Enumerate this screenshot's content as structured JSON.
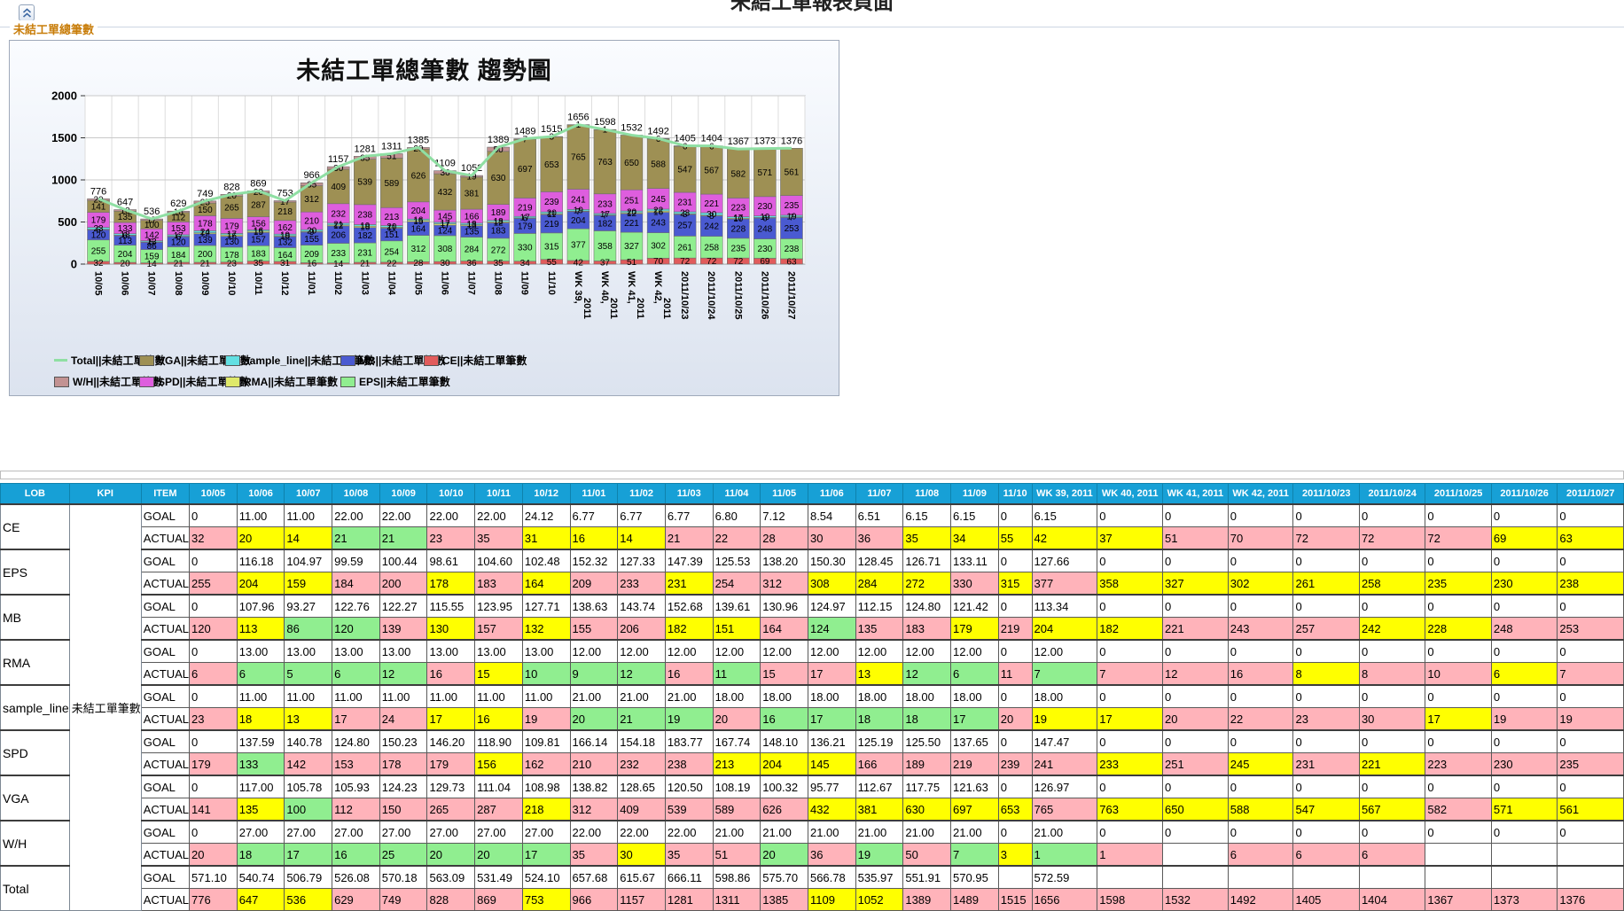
{
  "page": {
    "top_title": "未結工單報表頁面",
    "section_tab": "未結工單總筆數",
    "collapse_icon": "double-chevron-up"
  },
  "chart_data": {
    "type": "bar",
    "stacked": true,
    "title": "未結工單總筆數 趨勢圖",
    "xlabel": "",
    "ylabel": "",
    "ylim": [
      0,
      2000
    ],
    "y_ticks": [
      0,
      500,
      1000,
      1500,
      2000
    ],
    "grid": true,
    "legend_position": "bottom",
    "categories": [
      "10/05",
      "10/06",
      "10/07",
      "10/08",
      "10/09",
      "10/10",
      "10/11",
      "10/12",
      "11/01",
      "11/02",
      "11/03",
      "11/04",
      "11/05",
      "11/06",
      "11/07",
      "11/08",
      "11/09",
      "11/10",
      "WK 39, 2011",
      "WK 40, 2011",
      "WK 41, 2011",
      "WK 42, 2011",
      "2011/10/23",
      "2011/10/24",
      "2011/10/25",
      "2011/10/26",
      "2011/10/27"
    ],
    "series": [
      {
        "name": "CE||未結工單筆數",
        "color": "#e15b5b",
        "values": [
          32,
          20,
          14,
          21,
          21,
          23,
          35,
          31,
          16,
          14,
          21,
          22,
          28,
          30,
          36,
          35,
          34,
          55,
          42,
          37,
          51,
          70,
          72,
          72,
          72,
          69,
          63
        ]
      },
      {
        "name": "EPS||未結工單筆數",
        "color": "#90ee90",
        "values": [
          255,
          204,
          159,
          184,
          200,
          178,
          183,
          164,
          209,
          233,
          231,
          254,
          312,
          308,
          284,
          272,
          330,
          315,
          377,
          358,
          327,
          302,
          261,
          258,
          235,
          230,
          238
        ]
      },
      {
        "name": "MB||未結工單筆數",
        "color": "#4a5ad1",
        "values": [
          120,
          113,
          86,
          120,
          139,
          130,
          157,
          132,
          155,
          206,
          182,
          151,
          164,
          124,
          135,
          183,
          179,
          219,
          204,
          182,
          221,
          243,
          257,
          242,
          228,
          248,
          253
        ]
      },
      {
        "name": "RMA||未結工單筆數",
        "color": "#dfe96a",
        "values": [
          6,
          6,
          5,
          6,
          12,
          16,
          15,
          10,
          9,
          12,
          16,
          11,
          15,
          17,
          13,
          12,
          6,
          11,
          7,
          7,
          12,
          16,
          8,
          8,
          10,
          6,
          7
        ]
      },
      {
        "name": "sample_line||未結工單筆數",
        "color": "#62dfe2",
        "values": [
          23,
          18,
          13,
          17,
          24,
          17,
          16,
          19,
          20,
          21,
          19,
          20,
          16,
          17,
          18,
          18,
          17,
          20,
          19,
          17,
          20,
          22,
          23,
          30,
          17,
          19,
          19
        ]
      },
      {
        "name": "SPD||未結工單筆數",
        "color": "#de5ede",
        "values": [
          179,
          133,
          142,
          153,
          178,
          179,
          156,
          162,
          210,
          232,
          238,
          213,
          204,
          145,
          166,
          189,
          219,
          239,
          241,
          233,
          251,
          245,
          231,
          221,
          223,
          230,
          235
        ]
      },
      {
        "name": "VGA||未結工單筆數",
        "color": "#9e9054",
        "values": [
          141,
          135,
          100,
          112,
          150,
          265,
          287,
          218,
          312,
          409,
          539,
          589,
          626,
          432,
          381,
          630,
          697,
          653,
          765,
          763,
          650,
          588,
          547,
          567,
          582,
          571,
          561
        ]
      },
      {
        "name": "W/H||未結工單筆數",
        "color": "#c29292",
        "values": [
          20,
          18,
          17,
          16,
          25,
          20,
          20,
          17,
          35,
          30,
          35,
          51,
          20,
          36,
          19,
          50,
          7,
          3,
          1,
          1,
          0,
          6,
          6,
          6,
          0,
          0,
          0
        ]
      }
    ],
    "line_series": {
      "name": "Total||未結工單筆數",
      "color": "#8fdfa3",
      "values": [
        776,
        647,
        536,
        629,
        749,
        828,
        869,
        753,
        966,
        1157,
        1281,
        1311,
        1385,
        1109,
        1052,
        1389,
        1489,
        1515,
        1656,
        1598,
        1532,
        1492,
        1405,
        1404,
        1367,
        1373,
        1376
      ]
    },
    "legend_rows": [
      [
        "Total||未結工單筆數",
        "VGA||未結工單筆數",
        "sample_line||未結工單筆數",
        "MB||未結工單筆數",
        "CE||未結工單筆數"
      ],
      [
        "W/H||未結工單筆數",
        "SPD||未結工單筆數",
        "RMA||未結工單筆數",
        "EPS||未結工單筆數"
      ]
    ]
  },
  "table": {
    "fixed_headers": [
      "LOB",
      "KPI",
      "ITEM"
    ],
    "kpi_label": "未結工單筆數",
    "item_labels": {
      "goal": "GOAL",
      "actual": "ACTUAL"
    },
    "cell_colors": {
      "P": "#ffb3ba",
      "Y": "#ffff00",
      "G": "#90ee90",
      "W": "#ffffff"
    },
    "header_bg": "#17a0d6",
    "groups": [
      {
        "lob": "CE",
        "goal": [
          "0",
          "11.00",
          "11.00",
          "22.00",
          "22.00",
          "22.00",
          "22.00",
          "24.12",
          "6.77",
          "6.77",
          "6.77",
          "6.80",
          "7.12",
          "8.54",
          "6.51",
          "6.15",
          "6.15",
          "0",
          "6.15",
          "0",
          "0",
          "0",
          "0",
          "0",
          "0",
          "0",
          "0"
        ],
        "actual": [
          32,
          20,
          14,
          21,
          21,
          23,
          35,
          31,
          16,
          14,
          21,
          22,
          28,
          30,
          36,
          35,
          34,
          55,
          42,
          37,
          51,
          70,
          72,
          72,
          72,
          69,
          63
        ],
        "colors": "PYYGGPPYYYPPPPPYYYYYPPPPPYY"
      },
      {
        "lob": "EPS",
        "goal": [
          "0",
          "116.18",
          "104.97",
          "99.59",
          "100.44",
          "98.61",
          "104.60",
          "102.48",
          "152.32",
          "127.33",
          "147.39",
          "125.53",
          "138.20",
          "150.30",
          "128.45",
          "126.71",
          "133.11",
          "0",
          "127.66",
          "0",
          "0",
          "0",
          "0",
          "0",
          "0",
          "0",
          "0"
        ],
        "actual": [
          255,
          204,
          159,
          184,
          200,
          178,
          183,
          164,
          209,
          233,
          231,
          254,
          312,
          308,
          284,
          272,
          330,
          315,
          377,
          358,
          327,
          302,
          261,
          258,
          235,
          230,
          238
        ],
        "colors": "PYYPPYPYPPYPPYYYPYPYYYYYYYY"
      },
      {
        "lob": "MB",
        "goal": [
          "0",
          "107.96",
          "93.27",
          "122.76",
          "122.27",
          "115.55",
          "123.95",
          "127.71",
          "138.63",
          "143.74",
          "152.68",
          "139.61",
          "130.96",
          "124.97",
          "112.15",
          "124.80",
          "121.42",
          "0",
          "113.34",
          "0",
          "0",
          "0",
          "0",
          "0",
          "0",
          "0",
          "0"
        ],
        "actual": [
          120,
          113,
          86,
          120,
          139,
          130,
          157,
          132,
          155,
          206,
          182,
          151,
          164,
          124,
          135,
          183,
          179,
          219,
          204,
          182,
          221,
          243,
          257,
          242,
          228,
          248,
          253
        ],
        "colors": "PYGGPYPYPPYYPGPPYPYYPPPYYPP"
      },
      {
        "lob": "RMA",
        "goal": [
          "0",
          "13.00",
          "13.00",
          "13.00",
          "13.00",
          "13.00",
          "13.00",
          "13.00",
          "12.00",
          "12.00",
          "12.00",
          "12.00",
          "12.00",
          "12.00",
          "12.00",
          "12.00",
          "12.00",
          "0",
          "12.00",
          "0",
          "0",
          "0",
          "0",
          "0",
          "0",
          "0",
          "0"
        ],
        "actual": [
          6,
          6,
          5,
          6,
          12,
          16,
          15,
          10,
          9,
          12,
          16,
          11,
          15,
          17,
          13,
          12,
          6,
          11,
          7,
          7,
          12,
          16,
          8,
          8,
          10,
          6,
          7
        ],
        "colors": "PGGGGPYGGGPGPPYGGPGPPPYPPYP"
      },
      {
        "lob": "sample_line",
        "goal": [
          "0",
          "11.00",
          "11.00",
          "11.00",
          "11.00",
          "11.00",
          "11.00",
          "11.00",
          "21.00",
          "21.00",
          "21.00",
          "18.00",
          "18.00",
          "18.00",
          "18.00",
          "18.00",
          "18.00",
          "0",
          "18.00",
          "0",
          "0",
          "0",
          "0",
          "0",
          "0",
          "0",
          "0"
        ],
        "actual": [
          23,
          18,
          13,
          17,
          24,
          17,
          16,
          19,
          20,
          21,
          19,
          20,
          16,
          17,
          18,
          18,
          17,
          20,
          19,
          17,
          20,
          22,
          23,
          30,
          17,
          19,
          19
        ],
        "colors": "PYYPPYYPGGGPGGGGGPYYPPPPYPP"
      },
      {
        "lob": "SPD",
        "goal": [
          "0",
          "137.59",
          "140.78",
          "124.80",
          "150.23",
          "146.20",
          "118.90",
          "109.81",
          "166.14",
          "154.18",
          "183.77",
          "167.74",
          "148.10",
          "136.21",
          "125.19",
          "125.50",
          "137.65",
          "0",
          "147.47",
          "0",
          "0",
          "0",
          "0",
          "0",
          "0",
          "0",
          "0"
        ],
        "actual": [
          179,
          133,
          142,
          153,
          178,
          179,
          156,
          162,
          210,
          232,
          238,
          213,
          204,
          145,
          166,
          189,
          219,
          239,
          241,
          233,
          251,
          245,
          231,
          221,
          223,
          230,
          235
        ],
        "colors": "PGPPPPYPPPPYYYPPPPPYPYPYPPP"
      },
      {
        "lob": "VGA",
        "goal": [
          "0",
          "117.00",
          "105.78",
          "105.93",
          "124.23",
          "129.73",
          "111.04",
          "108.98",
          "138.82",
          "128.65",
          "120.50",
          "108.19",
          "100.32",
          "95.77",
          "112.67",
          "117.75",
          "121.63",
          "0",
          "126.97",
          "0",
          "0",
          "0",
          "0",
          "0",
          "0",
          "0",
          "0"
        ],
        "actual": [
          141,
          135,
          100,
          112,
          150,
          265,
          287,
          218,
          312,
          409,
          539,
          589,
          626,
          432,
          381,
          630,
          697,
          653,
          765,
          763,
          650,
          588,
          547,
          567,
          582,
          571,
          561
        ],
        "colors": "PYGPPPPYPPPPPYYYYYPYYYYYPYY"
      },
      {
        "lob": "W/H",
        "goal": [
          "0",
          "27.00",
          "27.00",
          "27.00",
          "27.00",
          "27.00",
          "27.00",
          "27.00",
          "22.00",
          "22.00",
          "22.00",
          "21.00",
          "21.00",
          "21.00",
          "21.00",
          "21.00",
          "21.00",
          "0",
          "21.00",
          "0",
          "0",
          "0",
          "0",
          "0",
          "0",
          "0",
          "0"
        ],
        "actual": [
          20,
          18,
          17,
          16,
          25,
          20,
          20,
          17,
          35,
          30,
          35,
          51,
          20,
          36,
          19,
          50,
          7,
          3,
          1,
          1,
          "",
          6,
          6,
          6,
          "",
          "",
          ""
        ],
        "colors": "PGGGGGGGPYPPGPGPGYGPWPPPWWW"
      },
      {
        "lob": "Total",
        "goal": [
          "571.10",
          "540.74",
          "506.79",
          "526.08",
          "570.18",
          "563.09",
          "531.49",
          "524.10",
          "657.68",
          "615.67",
          "666.11",
          "598.86",
          "575.70",
          "566.78",
          "535.97",
          "551.91",
          "570.95",
          "",
          "572.59",
          "",
          "",
          "",
          "",
          "",
          "",
          "",
          ""
        ],
        "actual": [
          776,
          647,
          536,
          629,
          749,
          828,
          869,
          753,
          966,
          1157,
          1281,
          1311,
          1385,
          1109,
          1052,
          1389,
          1489,
          1515,
          1656,
          1598,
          1532,
          1492,
          1405,
          1404,
          1367,
          1373,
          1376
        ],
        "colors": "PYYPPPPYPPPPPYYPPPPPPPPPPPP"
      }
    ]
  }
}
